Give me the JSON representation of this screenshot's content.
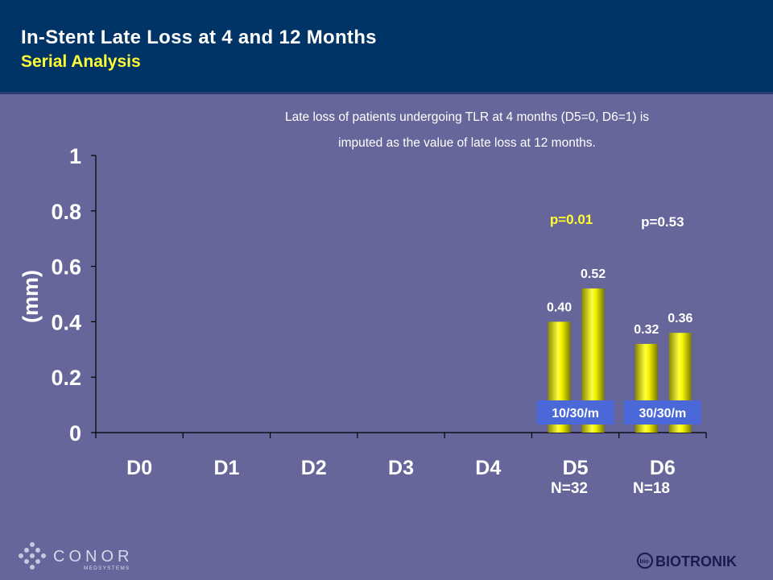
{
  "header": {
    "title": "In-Stent Late Loss at 4 and 12 Months",
    "subtitle": "Serial Analysis"
  },
  "note": {
    "line1": "Late loss of patients undergoing TLR at 4 months (D5=0, D6=1) is",
    "line2": "imputed as the value of late loss at 12 months."
  },
  "chart_data": {
    "type": "bar",
    "categories": [
      "D0",
      "D1",
      "D2",
      "D3",
      "D4",
      "D5",
      "D6"
    ],
    "ylabel": "(mm)",
    "ylim": [
      0,
      1
    ],
    "yticks": [
      "0",
      "0.2",
      "0.4",
      "0.6",
      "0.8",
      "1"
    ],
    "grid": false,
    "series": [
      {
        "values": [
          null,
          null,
          null,
          null,
          null,
          0.4,
          0.32
        ]
      },
      {
        "values": [
          null,
          null,
          null,
          null,
          null,
          0.52,
          0.36
        ]
      }
    ],
    "data_labels": {
      "D5": [
        "0.40",
        "0.52"
      ],
      "D6": [
        "0.32",
        "0.36"
      ]
    },
    "group_badges": {
      "D5": "10/30/m",
      "D6": "30/30/m"
    },
    "p_values": {
      "D5": "p=0.01",
      "D6": "p=0.53"
    },
    "n_labels": {
      "D5": "N=32",
      "D6": "N=18"
    },
    "colors": {
      "bar": "#e6e600",
      "badge": "#4a68d8",
      "p_highlight": "#ffff33",
      "text": "#ffffff"
    }
  },
  "logos": {
    "left": {
      "name": "CONOR",
      "sub": "MEDSYSTEMS",
      "icon": "conor-diamond-icon"
    },
    "right": {
      "name": "BIOTRONIK",
      "icon": "biotronik-bio-icon"
    }
  }
}
